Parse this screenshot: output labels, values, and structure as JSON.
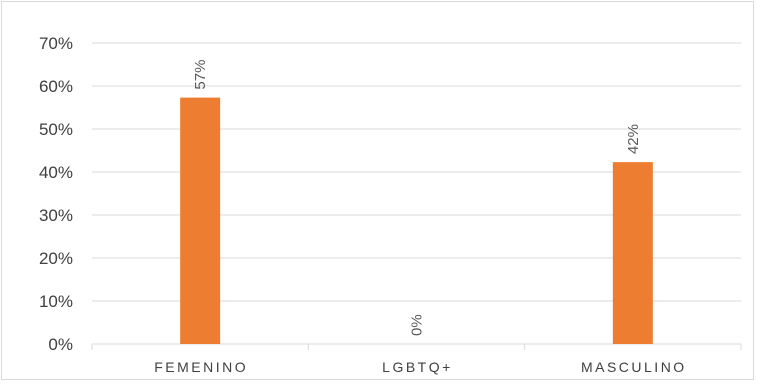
{
  "chart_data": {
    "type": "bar",
    "categories": [
      "FEMENINO",
      "LGBTQ+",
      "MASCULINO"
    ],
    "values": [
      57.3,
      0,
      42.3
    ],
    "data_labels": [
      "57%",
      "0%",
      "42%"
    ],
    "ylim": [
      0,
      70
    ],
    "yticks": [
      0,
      10,
      20,
      30,
      40,
      50,
      60,
      70
    ],
    "ytick_labels": [
      "0%",
      "10%",
      "20%",
      "30%",
      "40%",
      "50%",
      "60%",
      "70%"
    ],
    "title": "",
    "xlabel": "",
    "ylabel": "",
    "grid": true,
    "legend": "none",
    "bar_color": "#ED7D31",
    "grid_color": "#D9D9D9",
    "text_color": "#404040"
  }
}
